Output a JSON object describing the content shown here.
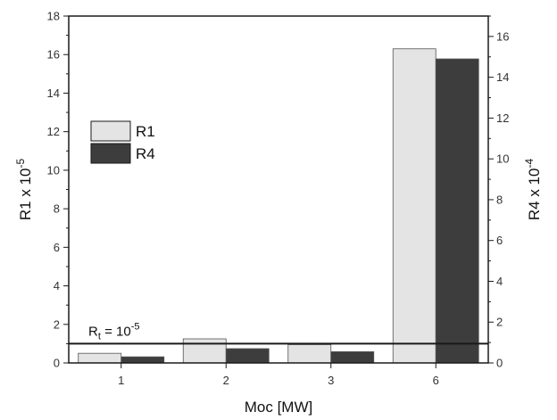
{
  "chart_data": {
    "type": "bar",
    "xlabel": "Moc [MW]",
    "categories": [
      "1",
      "2",
      "3",
      "6"
    ],
    "y_left": {
      "label_base": "R1 x 10",
      "label_exp": "-5",
      "range": [
        0,
        18
      ],
      "ticks": [
        "0",
        "2",
        "4",
        "6",
        "8",
        "10",
        "12",
        "14",
        "16",
        "18"
      ]
    },
    "y_right": {
      "label_base": "R4 x 10",
      "label_exp": "-4",
      "range": [
        0,
        17
      ],
      "ticks": [
        "0",
        "2",
        "4",
        "6",
        "8",
        "10",
        "12",
        "14",
        "16"
      ]
    },
    "series": [
      {
        "name": "R1",
        "axis": "left",
        "color": "#e4e4e4",
        "values": [
          0.5,
          1.25,
          0.95,
          16.3
        ]
      },
      {
        "name": "R4",
        "axis": "right",
        "color": "#3d3d3d",
        "values": [
          0.3,
          0.7,
          0.55,
          14.9
        ]
      }
    ],
    "threshold": {
      "value": 1,
      "axis": "left",
      "label_base": "R",
      "label_sub": "t",
      "label_mid": " = 10",
      "label_exp": "-5"
    },
    "legend_position": "upper-left",
    "grid": false
  }
}
